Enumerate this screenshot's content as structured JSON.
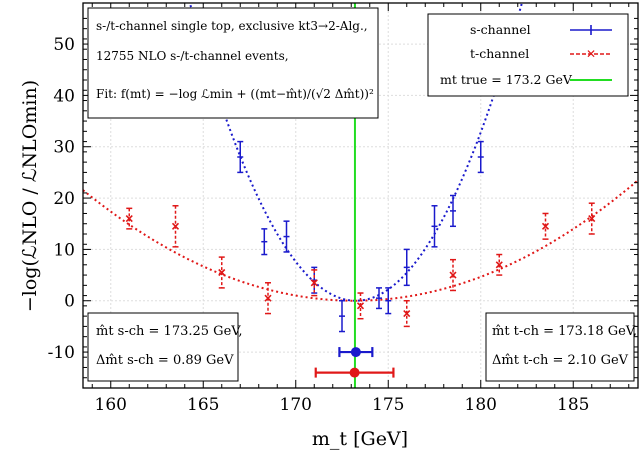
{
  "chart_data": {
    "type": "scatter",
    "xlabel": "m_t [GeV]",
    "ylabel": "−log(ℒNLO / ℒNLOmin)",
    "xlim": [
      158.5,
      188.5
    ],
    "ylim": [
      -17,
      58
    ],
    "x_ticks": [
      160,
      165,
      170,
      175,
      180,
      185
    ],
    "y_ticks": [
      -10,
      0,
      10,
      20,
      30,
      40,
      50
    ],
    "grid": true,
    "info_box": {
      "line1": "s-/t-channel single top, exclusive kt3→2-Alg.,",
      "line2": "12755 NLO s-/t-channel events,",
      "line3": "Fit: f(mt) = −log ℒmin + ((mt−m̂t)/(√2 Δm̂t))²"
    },
    "legend": {
      "position": "top-right",
      "entries": [
        "s-channel",
        "t-channel",
        "mt true = 173.2 GeV"
      ]
    },
    "true_mass": 173.2,
    "series": [
      {
        "name": "s-channel",
        "color": "#1a1acc",
        "points": [
          {
            "x": 167.0,
            "y": 28,
            "err": 3
          },
          {
            "x": 168.3,
            "y": 11.5,
            "err": 2.5
          },
          {
            "x": 169.5,
            "y": 12.5,
            "err": 3
          },
          {
            "x": 171.0,
            "y": 4,
            "err": 2.5
          },
          {
            "x": 172.5,
            "y": -3,
            "err": 3
          },
          {
            "x": 174.5,
            "y": 0.5,
            "err": 2
          },
          {
            "x": 175.0,
            "y": 0.0,
            "err": 2.5
          },
          {
            "x": 176.0,
            "y": 6.5,
            "err": 3.5
          },
          {
            "x": 177.5,
            "y": 14.5,
            "err": 4
          },
          {
            "x": 178.5,
            "y": 17.5,
            "err": 3
          },
          {
            "x": 180.0,
            "y": 28,
            "err": 3
          }
        ],
        "fit": {
          "center": 173.25,
          "a": 0.72
        },
        "result": {
          "value": 173.25,
          "uncertainty": 0.89,
          "marker_y": -10
        }
      },
      {
        "name": "t-channel",
        "color": "#e01818",
        "points": [
          {
            "x": 161.0,
            "y": 16,
            "err": 2
          },
          {
            "x": 163.5,
            "y": 14.5,
            "err": 4
          },
          {
            "x": 166.0,
            "y": 5.5,
            "err": 3
          },
          {
            "x": 168.5,
            "y": 0.5,
            "err": 3
          },
          {
            "x": 171.0,
            "y": 3.5,
            "err": 2.5
          },
          {
            "x": 173.5,
            "y": -1,
            "err": 2.5
          },
          {
            "x": 176.0,
            "y": -2.5,
            "err": 2.5
          },
          {
            "x": 178.5,
            "y": 5,
            "err": 3
          },
          {
            "x": 181.0,
            "y": 7,
            "err": 2
          },
          {
            "x": 183.5,
            "y": 14.5,
            "err": 2.5
          },
          {
            "x": 186.0,
            "y": 16,
            "err": 3
          }
        ],
        "fit": {
          "center": 173.18,
          "a": 0.1
        },
        "result": {
          "value": 173.18,
          "uncertainty": 2.1,
          "marker_y": -14
        }
      }
    ],
    "result_boxes": {
      "s_line1": "m̂t s-ch = 173.25 GeV,",
      "s_line2": "Δm̂t s-ch = 0.89 GeV",
      "t_line1": "m̂t t-ch = 173.18 GeV,",
      "t_line2": "Δm̂t t-ch = 2.10 GeV"
    }
  }
}
